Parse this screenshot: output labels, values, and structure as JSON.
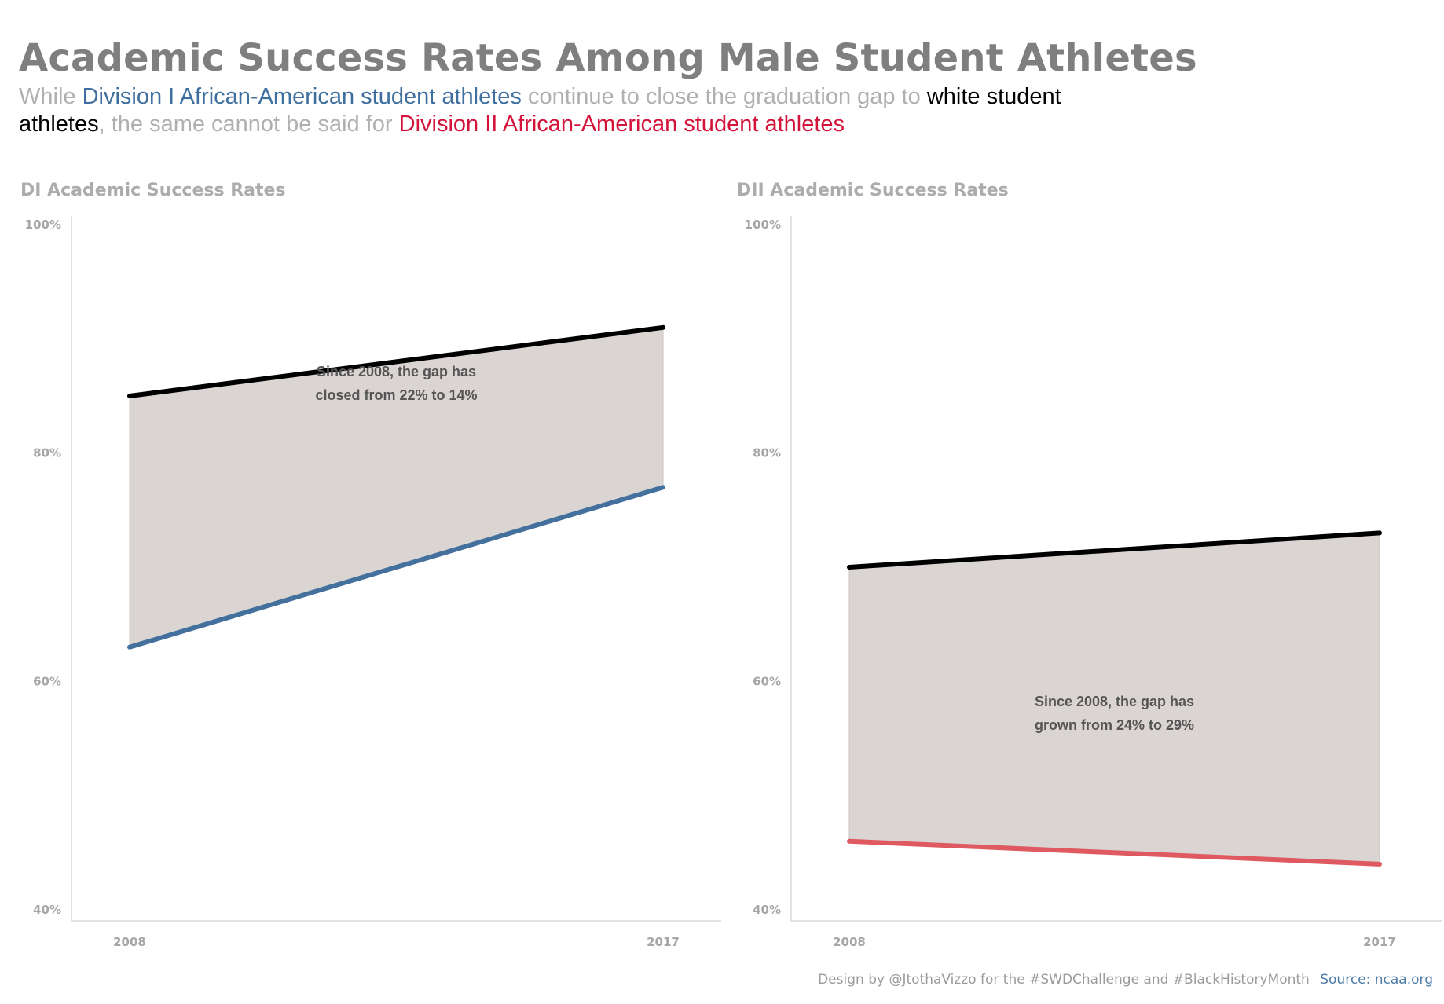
{
  "header": {
    "title": "Academic Success Rates Among Male Student Athletes",
    "subtitle_parts": [
      {
        "text": "While ",
        "style": "gray"
      },
      {
        "text": "Division I African-American student athletes",
        "style": "blue"
      },
      {
        "text": " continue to close the graduation gap to ",
        "style": "gray"
      },
      {
        "text": "white student athletes",
        "style": "black"
      },
      {
        "text": ", the same cannot be said for ",
        "style": "gray"
      },
      {
        "text": "Division II African-American student athletes",
        "style": "red"
      }
    ]
  },
  "colors": {
    "white_line": "#000000",
    "di_line": "#44709d",
    "dii_line": "#de5a60",
    "gap_fill": "#dad5d3",
    "axis": "#d9d9d9",
    "tick_label": "#a6a6a6",
    "annotation": "#555555"
  },
  "chart_data": [
    {
      "type": "line",
      "title": "DI Academic Success Rates",
      "x": [
        "2008",
        "2017"
      ],
      "ylim": [
        40,
        100
      ],
      "yticks": [
        "100%",
        "80%",
        "60%",
        "40%"
      ],
      "series": [
        {
          "name": "white student athletes",
          "values": [
            85,
            91
          ],
          "color": "#000000"
        },
        {
          "name": "Division I African-American student athletes",
          "values": [
            63,
            77
          ],
          "color": "#44709d"
        }
      ],
      "annotation": [
        "Since 2008, the gap has",
        "closed from 22% to 14%"
      ],
      "grid": false
    },
    {
      "type": "line",
      "title": "DII Academic Success Rates",
      "x": [
        "2008",
        "2017"
      ],
      "ylim": [
        40,
        100
      ],
      "yticks": [
        "100%",
        "80%",
        "60%",
        "40%"
      ],
      "series": [
        {
          "name": "white student athletes",
          "values": [
            70,
            73
          ],
          "color": "#000000"
        },
        {
          "name": "Division II African-American student athletes",
          "values": [
            46,
            44
          ],
          "color": "#de5a60"
        }
      ],
      "annotation": [
        "Since 2008, the gap has",
        "grown from 24% to 29%"
      ],
      "grid": false
    }
  ],
  "footer": {
    "credit": "Design by @JtothaVizzo for the #SWDChallenge and #BlackHistoryMonth",
    "source": "Source: ncaa.org"
  }
}
